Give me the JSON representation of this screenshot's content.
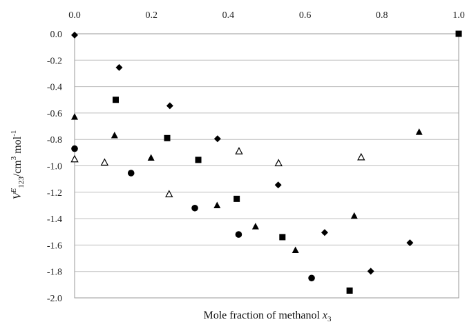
{
  "chart_data": {
    "type": "scatter",
    "title": "",
    "xlabel": "Mole fraction of methanol x3",
    "xlabel_parts": {
      "text": "Mole fraction of methanol ",
      "var": "x",
      "sub": "3"
    },
    "ylabel": "VE123/cm3 mol-1",
    "ylabel_parts": {
      "var": "V",
      "sup": "E",
      "sub": "123",
      "unit_a": "/cm",
      "unit_sup": "3",
      "unit_b": " mol",
      "unit_sup2": "-1"
    },
    "xlim": [
      0,
      1
    ],
    "ylim": [
      -2.0,
      0.0
    ],
    "x_ticks": [
      0.0,
      0.2,
      0.4,
      0.6,
      0.8,
      1.0
    ],
    "x_tick_labels": [
      "0.0",
      "0.2",
      "0.4",
      "0.6",
      "0.8",
      "1.0"
    ],
    "x_axis_position": "top",
    "y_ticks": [
      0.0,
      -0.2,
      -0.4,
      -0.6,
      -0.8,
      -1.0,
      -1.2,
      -1.4,
      -1.6,
      -1.8,
      -2.0
    ],
    "y_tick_labels": [
      "0.0",
      "-0.2",
      "-0.4",
      "-0.6",
      "-0.8",
      "-1.0",
      "-1.2",
      "-1.4",
      "-1.6",
      "-1.8",
      "-2.0"
    ],
    "grid": "horizontal",
    "legend": "none",
    "series": [
      {
        "marker": "diamond",
        "color": "#000000",
        "points": [
          {
            "x": 0.0,
            "y": -0.01
          },
          {
            "x": 0.116,
            "y": -0.255
          },
          {
            "x": 0.248,
            "y": -0.545
          },
          {
            "x": 0.372,
            "y": -0.795
          },
          {
            "x": 0.53,
            "y": -1.145
          },
          {
            "x": 0.651,
            "y": -1.505
          },
          {
            "x": 0.771,
            "y": -1.798
          },
          {
            "x": 0.873,
            "y": -1.583
          }
        ]
      },
      {
        "marker": "square",
        "color": "#000000",
        "points": [
          {
            "x": 0.107,
            "y": -0.5
          },
          {
            "x": 0.241,
            "y": -0.79
          },
          {
            "x": 0.322,
            "y": -0.955
          },
          {
            "x": 0.422,
            "y": -1.25
          },
          {
            "x": 0.541,
            "y": -1.54
          },
          {
            "x": 0.716,
            "y": -1.945
          },
          {
            "x": 1.0,
            "y": 0.0
          }
        ]
      },
      {
        "marker": "triangle",
        "color": "#000000",
        "points": [
          {
            "x": 0.0,
            "y": -0.63
          },
          {
            "x": 0.104,
            "y": -0.77
          },
          {
            "x": 0.199,
            "y": -0.94
          },
          {
            "x": 0.371,
            "y": -1.3
          },
          {
            "x": 0.471,
            "y": -1.46
          },
          {
            "x": 0.575,
            "y": -1.64
          },
          {
            "x": 0.728,
            "y": -1.38
          },
          {
            "x": 0.897,
            "y": -0.745
          }
        ]
      },
      {
        "marker": "circle",
        "color": "#000000",
        "points": [
          {
            "x": 0.0,
            "y": -0.87
          },
          {
            "x": 0.147,
            "y": -1.055
          },
          {
            "x": 0.313,
            "y": -1.32
          },
          {
            "x": 0.427,
            "y": -1.52
          },
          {
            "x": 0.617,
            "y": -1.85
          }
        ]
      },
      {
        "marker": "triangle-open",
        "color": "#000000",
        "points": [
          {
            "x": 0.0,
            "y": -0.95
          },
          {
            "x": 0.078,
            "y": -0.975
          },
          {
            "x": 0.246,
            "y": -1.215
          },
          {
            "x": 0.428,
            "y": -0.89
          },
          {
            "x": 0.531,
            "y": -0.98
          },
          {
            "x": 0.746,
            "y": -0.935
          }
        ]
      }
    ]
  }
}
